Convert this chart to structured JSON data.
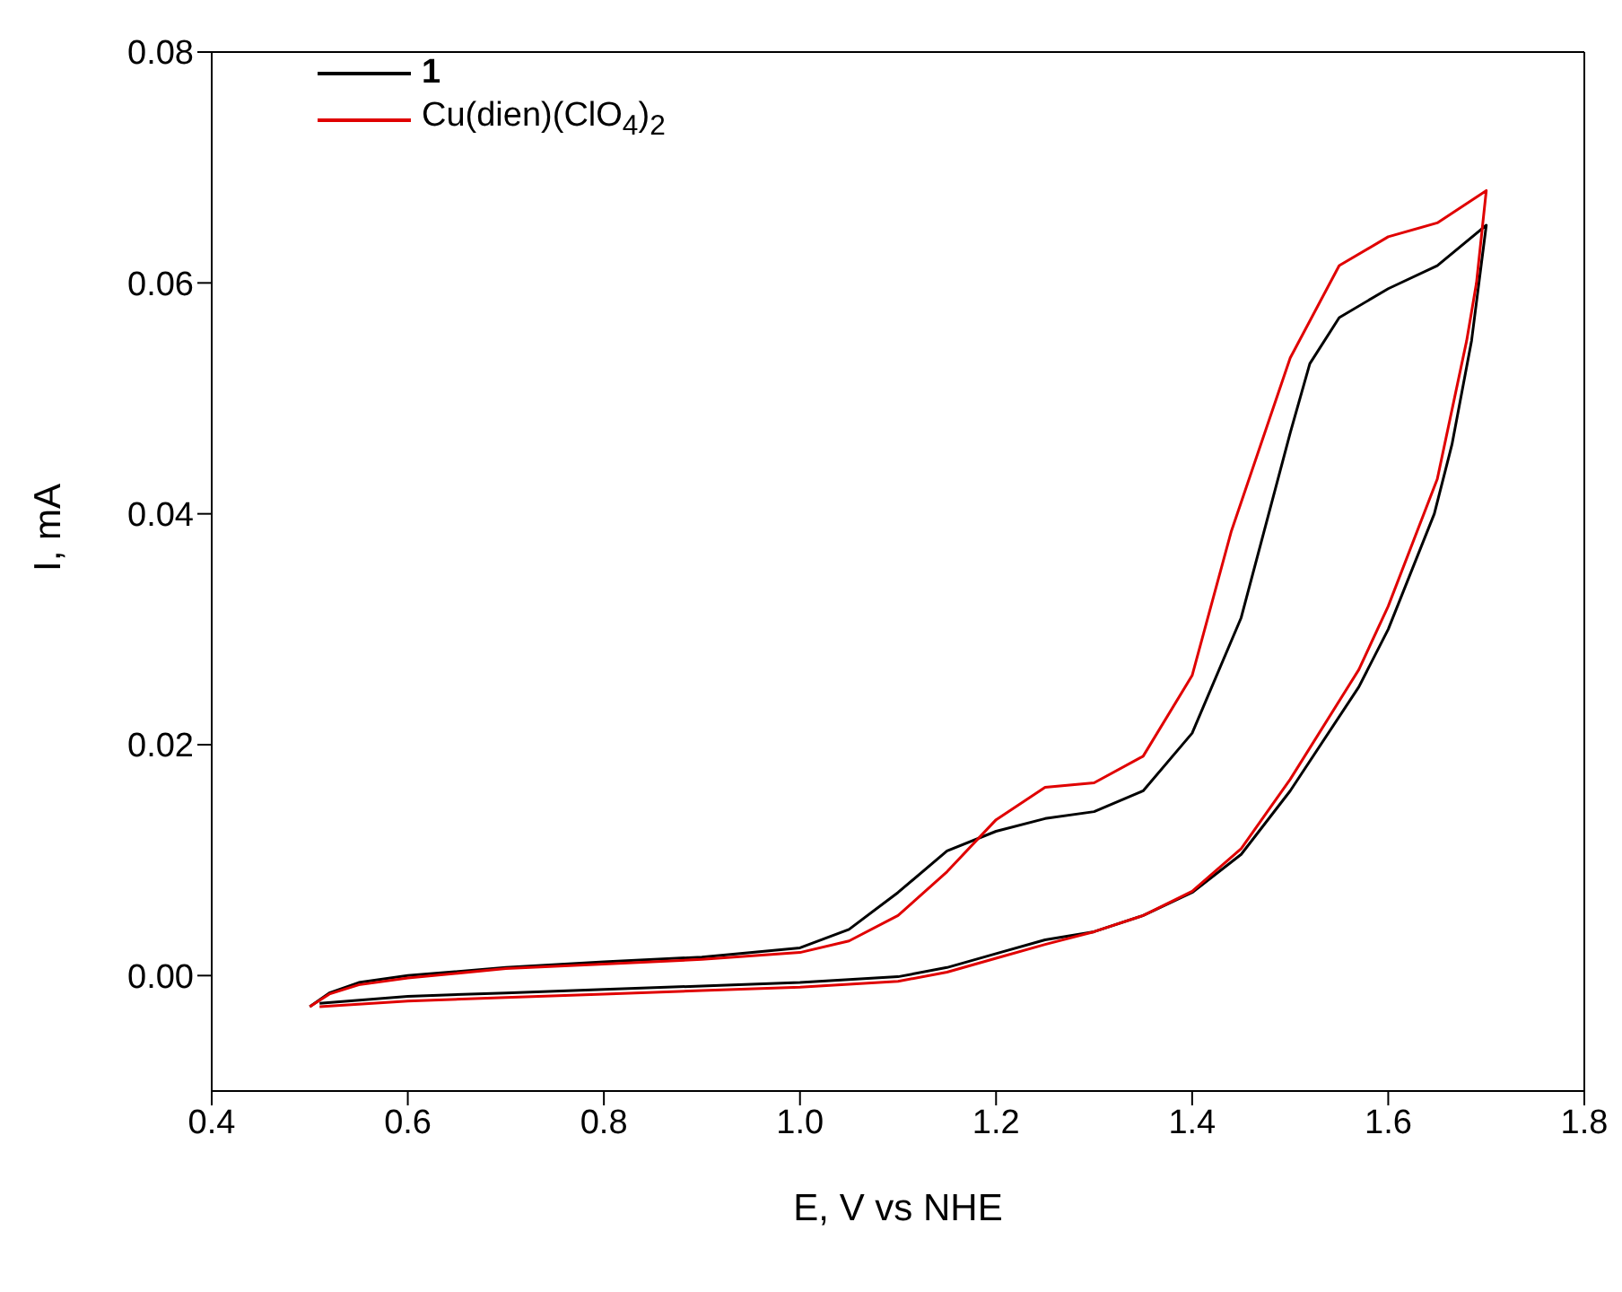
{
  "chart_data": {
    "type": "line",
    "xlabel": "E, V vs NHE",
    "ylabel": "I, mA",
    "xlim": [
      0.4,
      1.8
    ],
    "ylim": [
      -0.01,
      0.08
    ],
    "xticks": [
      0.4,
      0.6,
      0.8,
      {
        "value": 1,
        "label": "1.0"
      },
      1.2,
      1.4,
      1.6,
      1.8
    ],
    "yticks": [
      {
        "value": 0,
        "label": "0.00"
      },
      {
        "value": 0.02,
        "label": "0.02"
      },
      {
        "value": 0.04,
        "label": "0.04"
      },
      {
        "value": 0.06,
        "label": "0.06"
      },
      {
        "value": 0.08,
        "label": "0.08"
      }
    ],
    "legend": "top left",
    "marker": "none",
    "line_style": "solid",
    "series": [
      {
        "name": "1",
        "color": "#000000",
        "x": [
          0.5,
          0.52,
          0.55,
          0.6,
          0.7,
          0.8,
          0.9,
          1.0,
          1.05,
          1.1,
          1.15,
          1.2,
          1.25,
          1.3,
          1.35,
          1.4,
          1.45,
          1.5,
          1.52,
          1.55,
          1.6,
          1.65,
          1.7,
          1.685,
          1.665,
          1.647,
          1.6,
          1.57,
          1.5,
          1.45,
          1.4,
          1.35,
          1.3,
          1.25,
          1.2,
          1.15,
          1.1,
          1.0,
          0.9,
          0.8,
          0.7,
          0.6,
          0.51
        ],
        "values": [
          -0.0027,
          -0.0015,
          -0.0006,
          0.0,
          0.0007,
          0.0012,
          0.0016,
          0.0024,
          0.004,
          0.0072,
          0.0108,
          0.0125,
          0.0136,
          0.0142,
          0.016,
          0.021,
          0.031,
          0.047,
          0.053,
          0.057,
          0.0595,
          0.0615,
          0.065,
          0.055,
          0.046,
          0.04,
          0.03,
          0.025,
          0.016,
          0.0105,
          0.0072,
          0.0052,
          0.0038,
          0.0031,
          0.0019,
          0.0007,
          -0.0001,
          -0.0006,
          -0.0009,
          -0.0012,
          -0.0015,
          -0.0018,
          -0.0024
        ]
      },
      {
        "name": "Cu(dien)(ClO$_{4}$)$_{2}$",
        "color": "#e00000",
        "x": [
          0.5,
          0.52,
          0.55,
          0.6,
          0.7,
          0.8,
          0.9,
          1.0,
          1.05,
          1.1,
          1.15,
          1.2,
          1.25,
          1.3,
          1.35,
          1.4,
          1.44,
          1.5,
          1.55,
          1.6,
          1.65,
          1.7,
          1.69,
          1.68,
          1.65,
          1.6,
          1.57,
          1.5,
          1.45,
          1.4,
          1.35,
          1.3,
          1.25,
          1.2,
          1.15,
          1.1,
          1.0,
          0.9,
          0.8,
          0.7,
          0.6,
          0.51
        ],
        "values": [
          -0.0027,
          -0.0016,
          -0.0008,
          -0.0002,
          0.0006,
          0.001,
          0.0014,
          0.002,
          0.003,
          0.0052,
          0.009,
          0.0135,
          0.0163,
          0.0167,
          0.019,
          0.026,
          0.0385,
          0.0535,
          0.0615,
          0.064,
          0.0652,
          0.068,
          0.06,
          0.055,
          0.043,
          0.032,
          0.0265,
          0.017,
          0.011,
          0.0073,
          0.0052,
          0.0038,
          0.0027,
          0.0015,
          0.0003,
          -0.0005,
          -0.001,
          -0.0013,
          -0.0016,
          -0.0019,
          -0.0022,
          -0.0027
        ]
      }
    ]
  }
}
